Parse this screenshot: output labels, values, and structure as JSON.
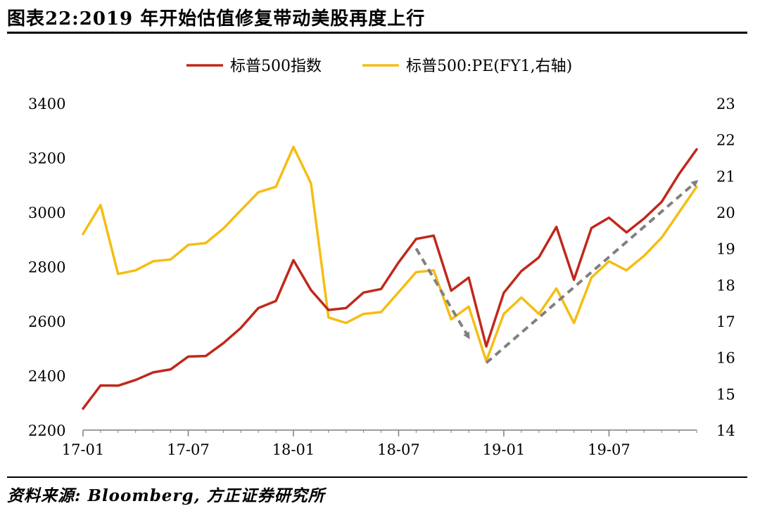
{
  "title": "图表22:2019 年开始估值修复带动美股再度上行",
  "source": "资料来源: Bloomberg, 方正证券研究所",
  "colors": {
    "spx": "#c0281b",
    "pe": "#f5bd14",
    "arrow": "#808080",
    "axis": "#7f7f7f"
  },
  "chart_data": {
    "type": "line",
    "x_tick_labels": [
      "17-01",
      "17-07",
      "18-01",
      "18-07",
      "19-01",
      "19-07"
    ],
    "x": [
      "17-01",
      "17-02",
      "17-03",
      "17-04",
      "17-05",
      "17-06",
      "17-07",
      "17-08",
      "17-09",
      "17-10",
      "17-11",
      "17-12",
      "18-01",
      "18-02",
      "18-03",
      "18-04",
      "18-05",
      "18-06",
      "18-07",
      "18-08",
      "18-09",
      "18-10",
      "18-11",
      "18-12",
      "19-01",
      "19-02",
      "19-03",
      "19-04",
      "19-05",
      "19-06",
      "19-07",
      "19-08",
      "19-09",
      "19-10",
      "19-11",
      "19-12"
    ],
    "left_axis": {
      "ylim": [
        2200,
        3400
      ],
      "ticks": [
        2200,
        2400,
        2600,
        2800,
        3000,
        3200,
        3400
      ]
    },
    "right_axis": {
      "ylim": [
        14,
        23
      ],
      "ticks": [
        14,
        15,
        16,
        17,
        18,
        19,
        20,
        21,
        22,
        23
      ]
    },
    "series": [
      {
        "name": "标普500指数",
        "axis": "left",
        "values": [
          2279,
          2364,
          2363,
          2384,
          2412,
          2423,
          2470,
          2472,
          2519,
          2575,
          2648,
          2674,
          2824,
          2714,
          2641,
          2648,
          2705,
          2718,
          2816,
          2902,
          2914,
          2712,
          2760,
          2507,
          2704,
          2784,
          2834,
          2946,
          2752,
          2942,
          2980,
          2926,
          2977,
          3038,
          3141,
          3231
        ]
      },
      {
        "name": "标普500:PE(FY1,右轴)",
        "axis": "right",
        "values": [
          19.4,
          20.2,
          18.3,
          18.4,
          18.65,
          18.7,
          19.1,
          19.15,
          19.55,
          20.05,
          20.55,
          20.7,
          21.8,
          20.8,
          17.1,
          16.95,
          17.2,
          17.25,
          17.8,
          18.35,
          18.4,
          17.05,
          17.4,
          15.9,
          17.2,
          17.65,
          17.2,
          17.9,
          16.95,
          18.2,
          18.65,
          18.4,
          18.8,
          19.3,
          20.0,
          20.7
        ]
      }
    ],
    "annotations": [
      {
        "type": "dashed-arrow",
        "axis": "right",
        "from": {
          "x": "18-08",
          "y": 19.0
        },
        "to": {
          "x": "18-11",
          "y": 16.55
        }
      },
      {
        "type": "dashed-arrow",
        "axis": "right",
        "from": {
          "x": "18-12",
          "y": 15.85
        },
        "to": {
          "x": "19-12",
          "y": 20.85
        }
      }
    ],
    "legend": "top-center",
    "grid": false
  }
}
